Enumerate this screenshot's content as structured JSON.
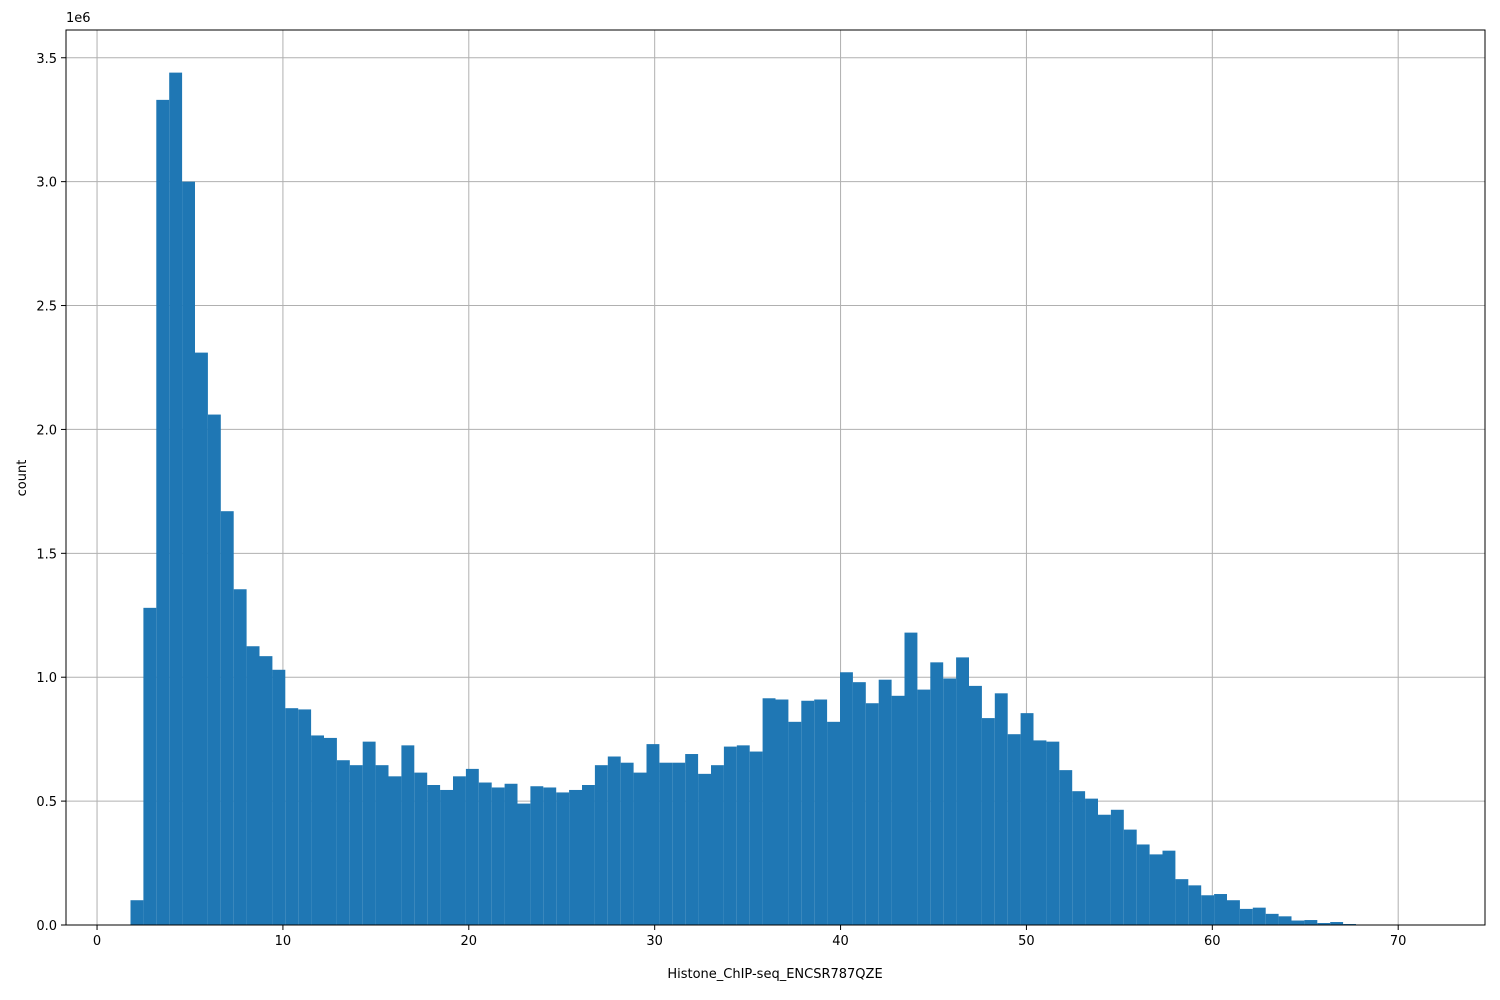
{
  "chart_data": {
    "type": "histogram",
    "x_label": "Histone_ChIP-seq_ENCSR787QZE",
    "y_label": "count",
    "y_offset_label": "1e6",
    "color": "#1f77b4",
    "grid": true,
    "xlim": [
      -1.67,
      74.67
    ],
    "ylim": [
      0,
      3.612
    ],
    "xticks": [
      0,
      10,
      20,
      30,
      40,
      50,
      60,
      70
    ],
    "yticks": [
      {
        "value": 0,
        "label": "0.0"
      },
      0.5,
      {
        "value": 1,
        "label": "1.0"
      },
      1.5,
      {
        "value": 2,
        "label": "2.0"
      },
      2.5,
      {
        "value": 3,
        "label": "3.0"
      },
      3.5
    ],
    "bins": [
      1.8,
      2.494,
      3.188,
      3.882,
      4.576,
      5.27,
      5.964,
      6.658,
      7.352,
      8.046,
      8.74,
      9.434,
      10.128,
      10.822,
      11.516,
      12.21,
      12.904,
      13.598,
      14.292,
      14.986,
      15.68,
      16.374,
      17.068,
      17.762,
      18.456,
      19.15,
      19.844,
      20.538,
      21.232,
      21.926,
      22.62,
      23.314,
      24.008,
      24.702,
      25.396,
      26.09,
      26.784,
      27.478,
      28.172,
      28.866,
      29.56,
      30.254,
      30.948,
      31.642,
      32.336,
      33.03,
      33.724,
      34.418,
      35.112,
      35.806,
      36.5,
      37.194,
      37.888,
      38.582,
      39.276,
      39.97,
      40.664,
      41.358,
      42.052,
      42.746,
      43.44,
      44.134,
      44.828,
      45.522,
      46.216,
      46.91,
      47.604,
      48.298,
      48.992,
      49.686,
      50.38,
      51.074,
      51.768,
      52.462,
      53.156,
      53.85,
      54.544,
      55.238,
      55.932,
      56.626,
      57.32,
      58.014,
      58.708,
      59.402,
      60.096,
      60.79,
      61.484,
      62.178,
      62.872,
      63.566,
      64.26,
      64.954,
      65.648,
      66.342,
      67.036,
      67.73,
      68.424,
      69.118,
      69.812,
      70.506,
      71.2
    ],
    "values": [
      0.1,
      1.28,
      3.33,
      3.44,
      3.0,
      2.31,
      2.06,
      1.67,
      1.355,
      1.125,
      1.085,
      1.03,
      0.875,
      0.87,
      0.765,
      0.755,
      0.665,
      0.645,
      0.74,
      0.645,
      0.6,
      0.725,
      0.615,
      0.565,
      0.545,
      0.6,
      0.63,
      0.575,
      0.555,
      0.57,
      0.49,
      0.56,
      0.555,
      0.535,
      0.545,
      0.565,
      0.645,
      0.68,
      0.655,
      0.615,
      0.73,
      0.655,
      0.655,
      0.69,
      0.61,
      0.645,
      0.72,
      0.725,
      0.7,
      0.915,
      0.91,
      0.82,
      0.905,
      0.91,
      0.82,
      1.02,
      0.98,
      0.895,
      0.99,
      0.925,
      1.18,
      0.95,
      1.06,
      0.995,
      1.08,
      0.965,
      0.835,
      0.935,
      0.77,
      0.855,
      0.745,
      0.74,
      0.625,
      0.54,
      0.51,
      0.445,
      0.465,
      0.385,
      0.325,
      0.285,
      0.3,
      0.185,
      0.16,
      0.12,
      0.125,
      0.1,
      0.065,
      0.07,
      0.045,
      0.035,
      0.018,
      0.02,
      0.008,
      0.012,
      0.004,
      0.002,
      0.001,
      0.0005,
      0.0003,
      0.0002
    ]
  }
}
